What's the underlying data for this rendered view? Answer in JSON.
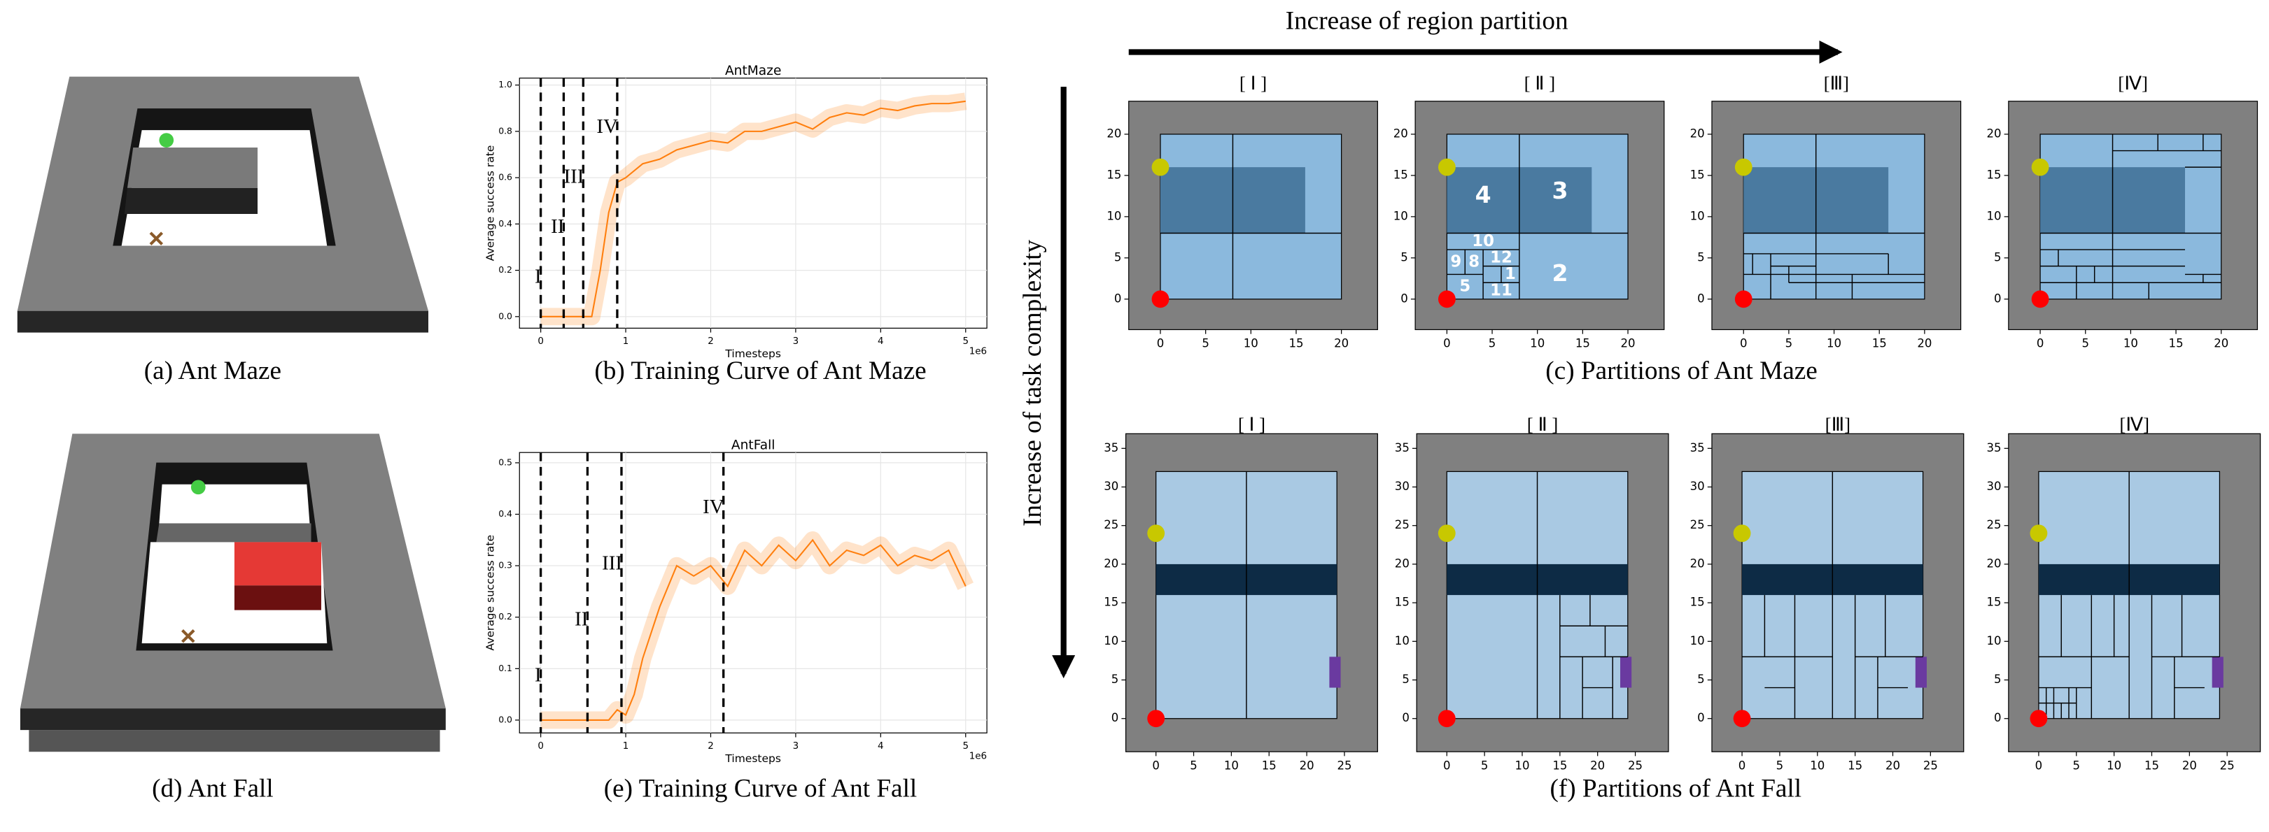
{
  "header": {
    "x_arrow": "Increase of region partition",
    "y_arrow": "Increase of task complexity"
  },
  "scenes": [
    {
      "caption": "(a) Ant Maze"
    },
    {
      "caption": "(d) Ant Fall"
    }
  ],
  "chart_data": [
    {
      "type": "line",
      "title": "AntMaze",
      "caption": "(b) Training Curve of Ant Maze",
      "xlabel": "Timesteps",
      "ylabel": "Average success rate",
      "x_offset_label": "1e6",
      "color": "#ff7f0e",
      "x": [
        0,
        0.2,
        0.4,
        0.6,
        0.7,
        0.8,
        0.9,
        1.0,
        1.2,
        1.4,
        1.6,
        1.8,
        2.0,
        2.2,
        2.4,
        2.6,
        2.8,
        3.0,
        3.2,
        3.4,
        3.6,
        3.8,
        4.0,
        4.2,
        4.4,
        4.6,
        4.8,
        5.0
      ],
      "values": [
        0,
        0,
        0,
        0,
        0.2,
        0.45,
        0.58,
        0.6,
        0.66,
        0.68,
        0.72,
        0.74,
        0.76,
        0.75,
        0.8,
        0.8,
        0.82,
        0.84,
        0.81,
        0.86,
        0.88,
        0.87,
        0.9,
        0.89,
        0.91,
        0.92,
        0.92,
        0.93
      ],
      "xlim": [
        -0.25,
        5.25
      ],
      "ylim": [
        -0.05,
        1.03
      ],
      "xticks": [
        0,
        1,
        2,
        3,
        4,
        5
      ],
      "yticks": [
        {
          "value": 0,
          "label": "0.0"
        },
        0.2,
        0.4,
        0.6,
        0.8,
        {
          "value": 1,
          "label": "1.0"
        }
      ],
      "grid": true,
      "stages": [
        {
          "x": 0,
          "label": "I"
        },
        {
          "x": 0.27,
          "label": "II"
        },
        {
          "x": 0.5,
          "label": "III"
        },
        {
          "x": 0.9,
          "label": "IV"
        }
      ]
    },
    {
      "type": "line",
      "title": "AntFall",
      "caption": "(e) Training Curve of Ant Fall",
      "xlabel": "Timesteps",
      "ylabel": "Average success rate",
      "x_offset_label": "1e6",
      "color": "#ff7f0e",
      "x": [
        0,
        0.5,
        0.8,
        0.9,
        1.0,
        1.1,
        1.2,
        1.4,
        1.6,
        1.8,
        2.0,
        2.2,
        2.4,
        2.6,
        2.8,
        3.0,
        3.2,
        3.4,
        3.6,
        3.8,
        4.0,
        4.2,
        4.4,
        4.6,
        4.8,
        5.0
      ],
      "values": [
        0,
        0,
        0,
        0.02,
        0.01,
        0.05,
        0.12,
        0.22,
        0.3,
        0.28,
        0.3,
        0.26,
        0.33,
        0.3,
        0.34,
        0.31,
        0.35,
        0.3,
        0.33,
        0.32,
        0.34,
        0.3,
        0.32,
        0.31,
        0.33,
        0.26
      ],
      "xlim": [
        -0.25,
        5.25
      ],
      "ylim": [
        -0.025,
        0.52
      ],
      "xticks": [
        0,
        1,
        2,
        3,
        4,
        5
      ],
      "yticks": [
        {
          "value": 0,
          "label": "0.0"
        },
        0.1,
        0.2,
        0.3,
        0.4,
        0.5
      ],
      "grid": true,
      "stages": [
        {
          "x": 0,
          "label": "I"
        },
        {
          "x": 0.55,
          "label": "II"
        },
        {
          "x": 0.95,
          "label": "III"
        },
        {
          "x": 2.15,
          "label": "IV"
        }
      ]
    }
  ],
  "partitions": [
    {
      "caption": "(c) Partitions of Ant Maze",
      "xlim": [
        -3.5,
        24
      ],
      "ylim": [
        -3.7,
        24
      ],
      "xticks": [
        0,
        5,
        10,
        15,
        20
      ],
      "yticks": [
        0,
        5,
        10,
        15,
        20
      ],
      "background": "#808080",
      "arena": [
        0,
        0,
        20,
        20
      ],
      "arena_color": "#8bb9dd",
      "regions": [
        {
          "rect": [
            0,
            8,
            16,
            16
          ],
          "color": "#4a7aa0"
        }
      ],
      "base_lines": [
        [
          8,
          0,
          8,
          20
        ],
        [
          0,
          8,
          20,
          8
        ]
      ],
      "points": [
        {
          "x": 0,
          "y": 0,
          "color": "#ff0000"
        },
        {
          "x": 0,
          "y": 16,
          "color": "#c8c800"
        }
      ],
      "panels": [
        {
          "title": "[ Ⅰ ]"
        },
        {
          "title": "[ Ⅱ ]",
          "lines": [
            [
              0,
              6,
              8,
              6
            ],
            [
              0,
              3,
              4,
              3
            ],
            [
              2,
              3,
              2,
              6
            ],
            [
              4,
              0,
              4,
              6
            ],
            [
              4,
              4,
              8,
              4
            ],
            [
              4,
              2,
              8,
              2
            ],
            [
              6,
              2,
              6,
              4
            ]
          ],
          "labels": [
            {
              "text": "4",
              "x": 4,
              "y": 12.5
            },
            {
              "text": "3",
              "x": 12.5,
              "y": 13
            },
            {
              "text": "2",
              "x": 12.5,
              "y": 3
            },
            {
              "text": "10",
              "x": 4,
              "y": 7
            },
            {
              "text": "9",
              "x": 1,
              "y": 4.5
            },
            {
              "text": "8",
              "x": 3,
              "y": 4.5
            },
            {
              "text": "12",
              "x": 6,
              "y": 5
            },
            {
              "text": "5",
              "x": 2,
              "y": 1.5
            },
            {
              "text": "1",
              "x": 7,
              "y": 3
            },
            {
              "text": "11",
              "x": 6,
              "y": 1
            }
          ]
        },
        {
          "title": "[Ⅲ]",
          "lines": [
            [
              0,
              5.5,
              16,
              5.5
            ],
            [
              16,
              5.5,
              16,
              3
            ],
            [
              0,
              3,
              20,
              3
            ],
            [
              1,
              3,
              1,
              5.5
            ],
            [
              3,
              0,
              3,
              5.5
            ],
            [
              5,
              2,
              5,
              4
            ],
            [
              5,
              2,
              20,
              2
            ],
            [
              12,
              0,
              12,
              3
            ],
            [
              3,
              4,
              8,
              4
            ]
          ]
        },
        {
          "title": "[Ⅳ]",
          "lines": [
            [
              8,
              18,
              20,
              18
            ],
            [
              13,
              18,
              13,
              20
            ],
            [
              18,
              18,
              18,
              20
            ],
            [
              16,
              16,
              20,
              16
            ],
            [
              0,
              6,
              16,
              6
            ],
            [
              0,
              4,
              16,
              4
            ],
            [
              2,
              4,
              2,
              6
            ],
            [
              0,
              2,
              20,
              2
            ],
            [
              4,
              0,
              4,
              4
            ],
            [
              6,
              2,
              6,
              4
            ],
            [
              16,
              3,
              20,
              3
            ],
            [
              12,
              0,
              12,
              2
            ],
            [
              18,
              2,
              18,
              3
            ]
          ]
        }
      ]
    },
    {
      "caption": "(f) Partitions of Ant Fall",
      "xlim": [
        -4,
        29.4
      ],
      "ylim": [
        -4.3,
        36.9
      ],
      "xticks": [
        0,
        5,
        10,
        15,
        20,
        25
      ],
      "yticks": [
        0,
        5,
        10,
        15,
        20,
        25,
        30,
        35
      ],
      "background": "#808080",
      "arena": [
        0,
        0,
        24,
        32
      ],
      "arena_color": "#a9c9e3",
      "regions": [
        {
          "rect": [
            0,
            16,
            24,
            20
          ],
          "color": "#0d2b45"
        },
        {
          "rect": [
            23,
            4,
            24.5,
            8
          ],
          "color": "#6a3aa0"
        }
      ],
      "base_lines": [
        [
          12,
          0,
          12,
          32
        ]
      ],
      "points": [
        {
          "x": 0,
          "y": 0,
          "color": "#ff0000"
        },
        {
          "x": 0,
          "y": 24,
          "color": "#c8c800"
        }
      ],
      "panels": [
        {
          "title": "[ Ⅰ ]"
        },
        {
          "title": "[ Ⅱ ]",
          "lines": [
            [
              15,
              0,
              15,
              16
            ],
            [
              15,
              12,
              24,
              12
            ],
            [
              19,
              12,
              19,
              16
            ],
            [
              15,
              8,
              24,
              8
            ],
            [
              18,
              0,
              18,
              8
            ],
            [
              18,
              4,
              22,
              4
            ],
            [
              21,
              8,
              21,
              12
            ],
            [
              22,
              0,
              22,
              8
            ]
          ]
        },
        {
          "title": "[Ⅲ]",
          "lines": [
            [
              0,
              8,
              12,
              8
            ],
            [
              3,
              8,
              3,
              16
            ],
            [
              7,
              8,
              7,
              16
            ],
            [
              3,
              4,
              7,
              4
            ],
            [
              7,
              0,
              7,
              8
            ],
            [
              15,
              0,
              15,
              16
            ],
            [
              15,
              8,
              24,
              8
            ],
            [
              19,
              8,
              19,
              16
            ],
            [
              18,
              0,
              18,
              8
            ],
            [
              18,
              4,
              22,
              4
            ]
          ]
        },
        {
          "title": "[Ⅳ]",
          "lines": [
            [
              0,
              2,
              5,
              2
            ],
            [
              1,
              0,
              1,
              4
            ],
            [
              2,
              0,
              2,
              4
            ],
            [
              3,
              0,
              3,
              2
            ],
            [
              4,
              0,
              4,
              4
            ],
            [
              5,
              0,
              5,
              4
            ],
            [
              0,
              4,
              7,
              4
            ],
            [
              0,
              8,
              12,
              8
            ],
            [
              7,
              0,
              7,
              16
            ],
            [
              3,
              8,
              3,
              16
            ],
            [
              10,
              8,
              10,
              16
            ],
            [
              15,
              0,
              15,
              16
            ],
            [
              15,
              8,
              24,
              8
            ],
            [
              19,
              8,
              19,
              16
            ],
            [
              18,
              0,
              18,
              8
            ],
            [
              18,
              4,
              22,
              4
            ]
          ]
        }
      ]
    }
  ]
}
